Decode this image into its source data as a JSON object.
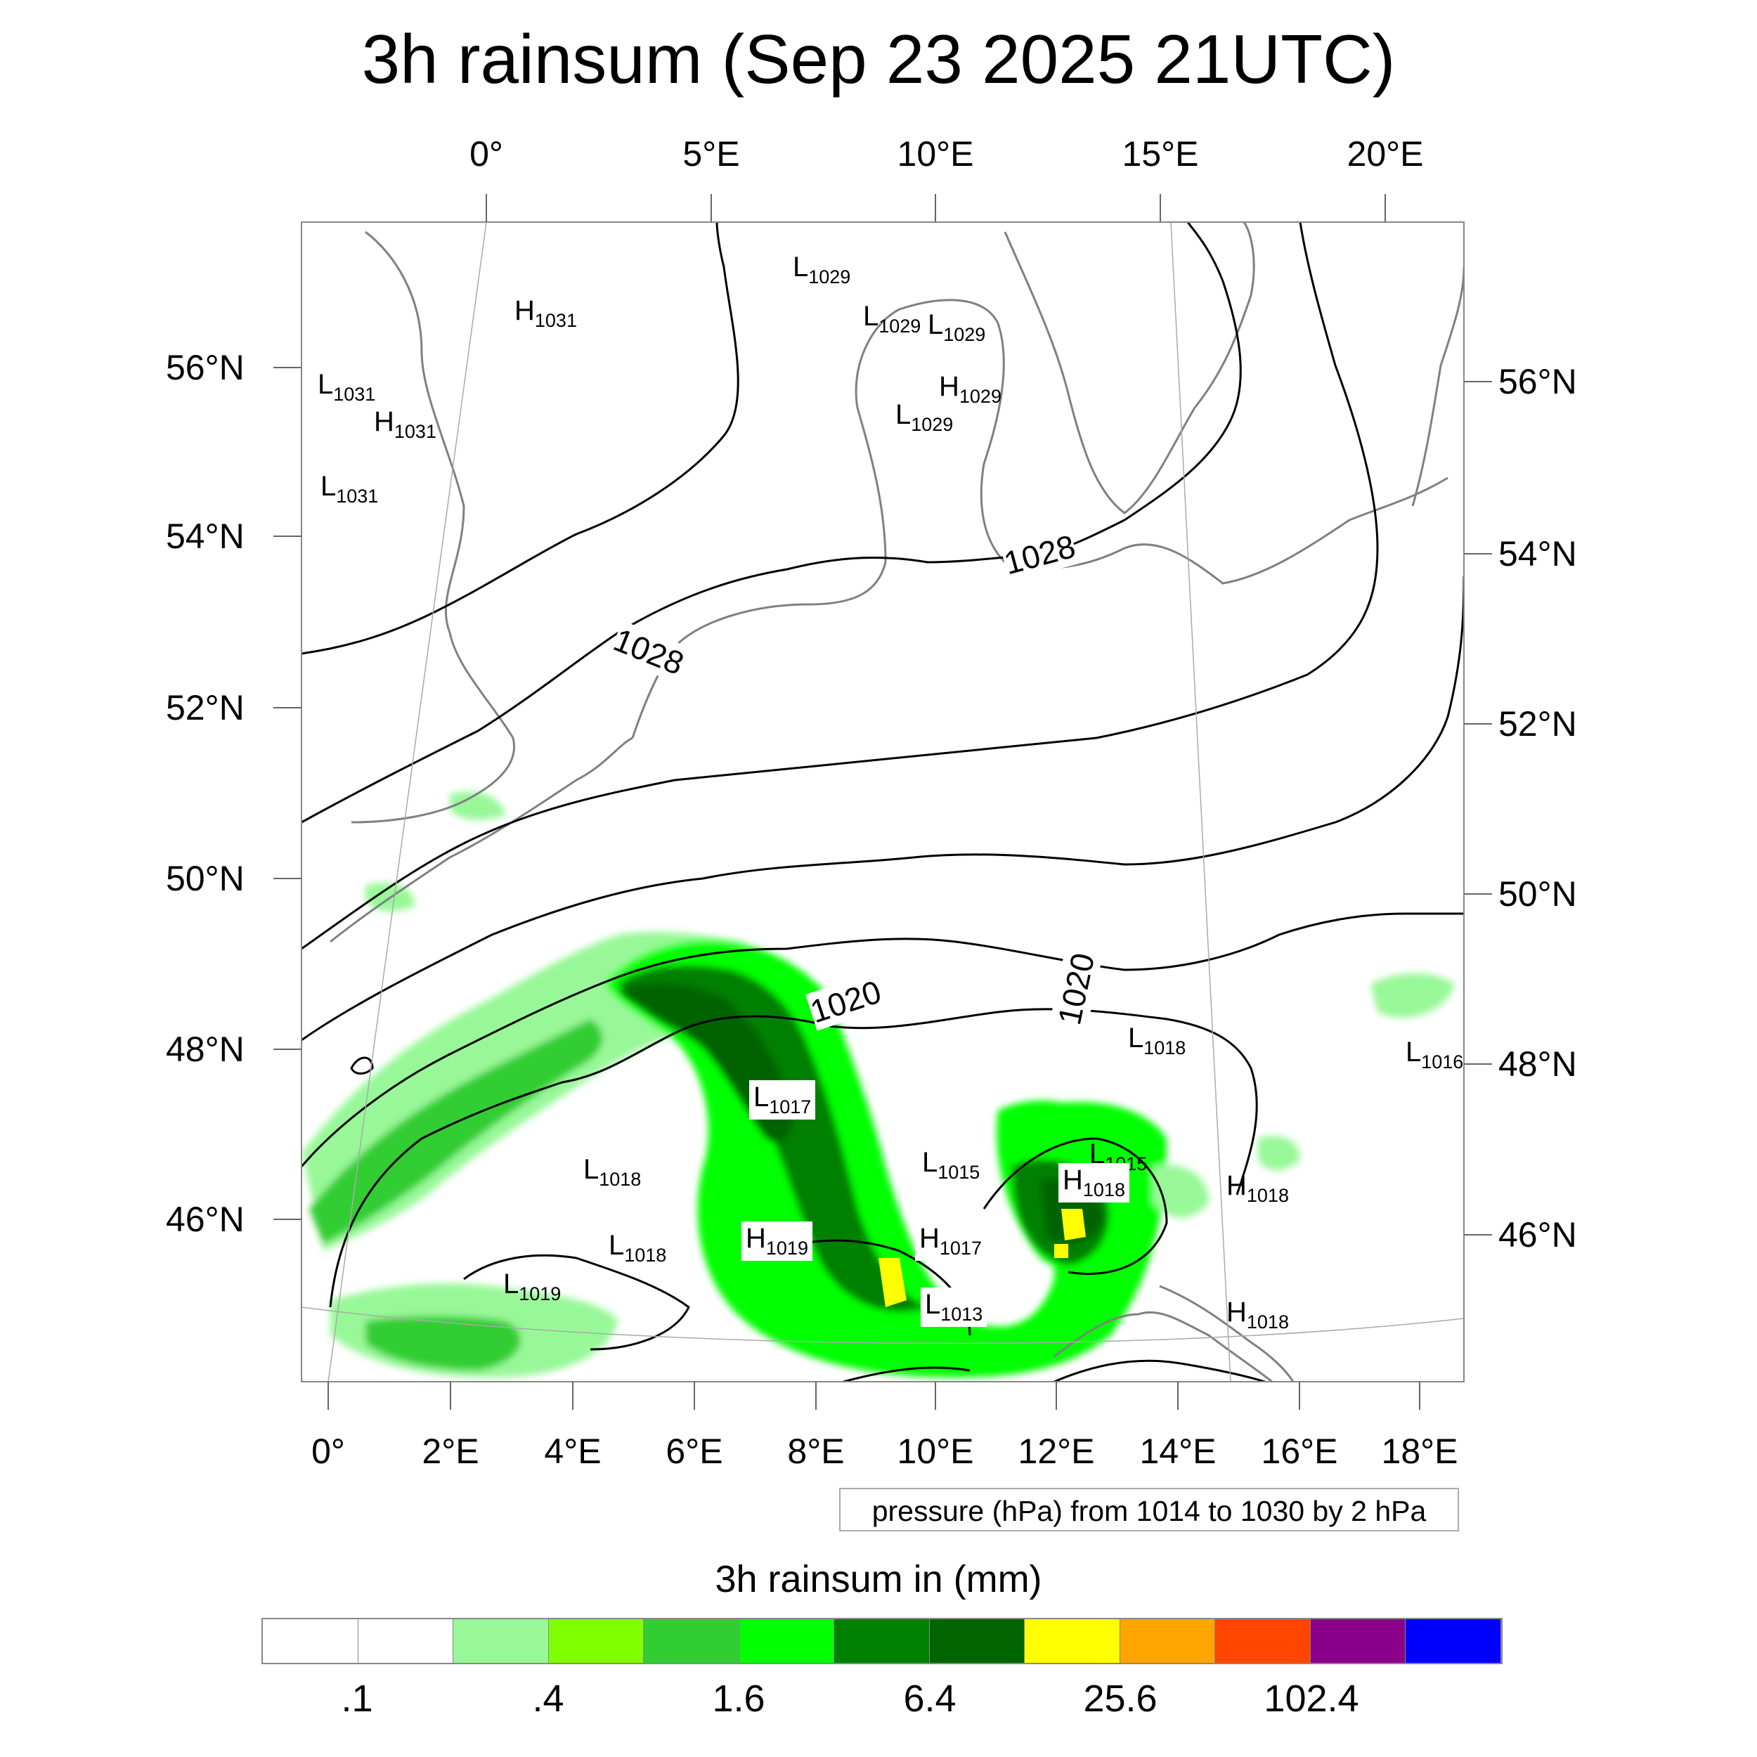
{
  "title": "3h rainsum (Sep 23 2025 21UTC)",
  "top_lon_labels": [
    "0°",
    "5°E",
    "10°E",
    "15°E",
    "20°E"
  ],
  "bottom_lon_labels": [
    "0°",
    "2°E",
    "4°E",
    "6°E",
    "8°E",
    "10°E",
    "12°E",
    "14°E",
    "16°E",
    "18°E"
  ],
  "left_lat_labels": [
    "56°N",
    "54°N",
    "52°N",
    "50°N",
    "48°N",
    "46°N"
  ],
  "right_lat_labels": [
    "56°N",
    "54°N",
    "52°N",
    "50°N",
    "48°N",
    "46°N"
  ],
  "contour_labels": [
    "1028",
    "1028",
    "1020",
    "1020"
  ],
  "pressure_centers": [
    {
      "type": "L",
      "value": "1029"
    },
    {
      "type": "H",
      "value": "1031"
    },
    {
      "type": "L",
      "value": "1029"
    },
    {
      "type": "L",
      "value": "1029"
    },
    {
      "type": "L",
      "value": "1031"
    },
    {
      "type": "H",
      "value": "1029"
    },
    {
      "type": "H",
      "value": "1031"
    },
    {
      "type": "L",
      "value": "1029"
    },
    {
      "type": "L",
      "value": "1031"
    },
    {
      "type": "L",
      "value": "1018"
    },
    {
      "type": "L",
      "value": "1016"
    },
    {
      "type": "L",
      "value": "1017"
    },
    {
      "type": "L",
      "value": "1015"
    },
    {
      "type": "L",
      "value": "1015"
    },
    {
      "type": "L",
      "value": "1018"
    },
    {
      "type": "H",
      "value": "1018"
    },
    {
      "type": "H",
      "value": "1018"
    },
    {
      "type": "L",
      "value": "1018"
    },
    {
      "type": "H",
      "value": "1019"
    },
    {
      "type": "H",
      "value": "1017"
    },
    {
      "type": "L",
      "value": "1019"
    },
    {
      "type": "L",
      "value": "1013"
    },
    {
      "type": "H",
      "value": "1018"
    }
  ],
  "legend_note": "pressure (hPa) from 1014 to 1030 by 2 hPa",
  "colorbar": {
    "title": "3h rainsum in (mm)",
    "colors": [
      "#ffffff",
      "#ffffff",
      "#98f898",
      "#80ff00",
      "#32cd32",
      "#00ff00",
      "#008000",
      "#006400",
      "#ffff00",
      "#ffa500",
      "#ff4500",
      "#8b008b",
      "#0000ff"
    ],
    "tick_labels": [
      ".1",
      ".4",
      "1.6",
      "6.4",
      "25.6",
      "102.4"
    ]
  }
}
